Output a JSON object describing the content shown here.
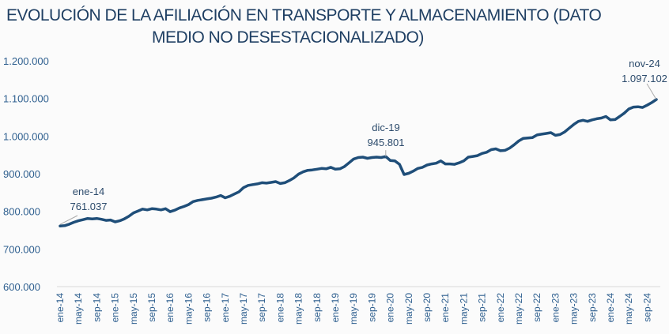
{
  "chart_data": {
    "type": "line",
    "title_line1": "EVOLUCIÓN DE LA AFILIACIÓN EN TRANSPORTE Y ALMACENAMIENTO (DATO",
    "title_line2": "MEDIO NO DESESTACIONALIZADO)",
    "xlabel": "",
    "ylabel": "",
    "ylim": [
      600000,
      1200000
    ],
    "yticks": [
      600000,
      700000,
      800000,
      900000,
      1000000,
      1100000,
      1200000
    ],
    "ytick_labels": [
      "600.000",
      "700.000",
      "800.000",
      "900.000",
      "1.000.000",
      "1.100.000",
      "1.200.000"
    ],
    "x_start": "ene-14",
    "x_end": "nov-24",
    "x_frequency": "monthly",
    "xtick_labels": [
      "ene-14",
      "may-14",
      "sep-14",
      "ene-15",
      "may-15",
      "sep-15",
      "ene-16",
      "may-16",
      "sep-16",
      "ene-17",
      "may-17",
      "sep-17",
      "ene-18",
      "may-18",
      "sep-18",
      "ene-19",
      "may-19",
      "sep-19",
      "ene-20",
      "may-20",
      "sep-20",
      "ene-21",
      "may-21",
      "sep-21",
      "ene-22",
      "may-22",
      "sep-22",
      "ene-23",
      "may-23",
      "sep-23",
      "ene-24",
      "may-24",
      "sep-24"
    ],
    "grid": false,
    "line_color": "#1f4e79",
    "series": [
      {
        "values": [
          761037,
          762000,
          766000,
          771000,
          775000,
          778000,
          781000,
          780000,
          781000,
          779000,
          776000,
          777000,
          772000,
          775000,
          780000,
          787000,
          796000,
          801000,
          806000,
          804000,
          807000,
          806000,
          804000,
          807000,
          799000,
          803000,
          809000,
          813000,
          818000,
          826000,
          829000,
          831000,
          833000,
          835000,
          838000,
          842000,
          836000,
          840000,
          846000,
          852000,
          863000,
          869000,
          871000,
          873000,
          876000,
          875000,
          877000,
          879000,
          874000,
          876000,
          882000,
          889000,
          899000,
          905000,
          909000,
          910000,
          912000,
          914000,
          913000,
          917000,
          912000,
          913000,
          919000,
          929000,
          939000,
          943000,
          944000,
          941000,
          943000,
          944000,
          943000,
          945801,
          935000,
          934000,
          925000,
          898000,
          901000,
          907000,
          914000,
          917000,
          923000,
          926000,
          928000,
          934000,
          926000,
          926000,
          925000,
          929000,
          934000,
          944000,
          946000,
          948000,
          954000,
          957000,
          964000,
          966000,
          961000,
          962000,
          968000,
          977000,
          987000,
          994000,
          995000,
          996000,
          1003000,
          1005000,
          1007000,
          1009000,
          1002000,
          1004000,
          1011000,
          1021000,
          1031000,
          1039000,
          1042000,
          1039000,
          1043000,
          1046000,
          1048000,
          1052000,
          1043000,
          1044000,
          1052000,
          1061000,
          1072000,
          1077000,
          1078000,
          1076000,
          1082000,
          1089000,
          1097102
        ]
      }
    ],
    "annotations": [
      {
        "index": 0,
        "date": "ene-14",
        "value_label": "761.037"
      },
      {
        "index": 71,
        "date": "dic-19",
        "value_label": "945.801"
      },
      {
        "index": 130,
        "date": "nov-24",
        "value_label": "1.097.102"
      }
    ]
  }
}
